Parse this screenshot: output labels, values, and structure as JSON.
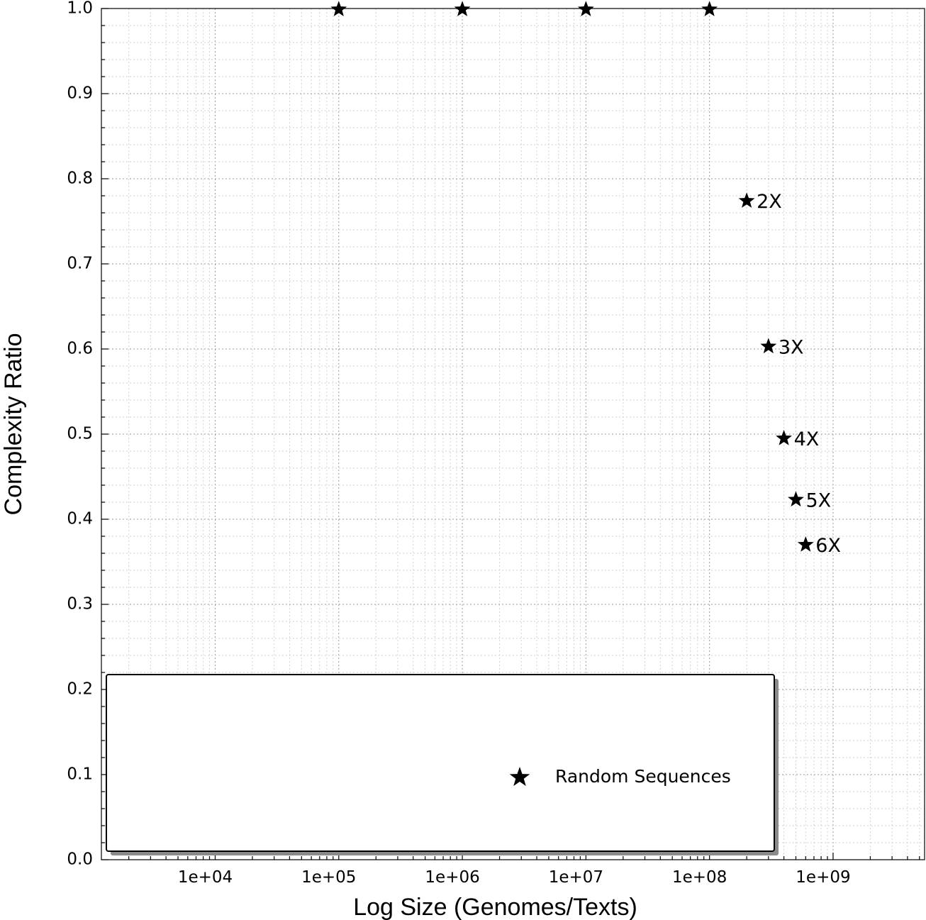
{
  "chart_data": {
    "type": "scatter",
    "xlabel": "Log Size (Genomes/Texts)",
    "ylabel": "Complexity Ratio",
    "xscale": "log",
    "xlim": [
      1200,
      5500000000
    ],
    "ylim": [
      0.0,
      1.0
    ],
    "xticks": [
      10000,
      100000,
      1000000,
      10000000,
      100000000,
      1000000000
    ],
    "xtick_labels": [
      "1e+04",
      "1e+05",
      "1e+06",
      "1e+07",
      "1e+08",
      "1e+09"
    ],
    "yticks": [
      0.0,
      0.1,
      0.2,
      0.3,
      0.4,
      0.5,
      0.6,
      0.7,
      0.8,
      0.9,
      1.0
    ],
    "ytick_labels": [
      "0.0",
      "0.1",
      "0.2",
      "0.3",
      "0.4",
      "0.5",
      "0.6",
      "0.7",
      "0.8",
      "0.9",
      "1.0"
    ],
    "grid": true,
    "legend_position": "bottom-left",
    "marker": "star",
    "series": [
      {
        "name": "Random Sequences",
        "points": [
          {
            "x": 100000,
            "y": 0.999,
            "label": ""
          },
          {
            "x": 1000000,
            "y": 0.999,
            "label": ""
          },
          {
            "x": 10000000,
            "y": 0.999,
            "label": ""
          },
          {
            "x": 100000000,
            "y": 0.999,
            "label": ""
          },
          {
            "x": 200000000,
            "y": 0.774,
            "label": "2X"
          },
          {
            "x": 300000000,
            "y": 0.603,
            "label": "3X"
          },
          {
            "x": 400000000,
            "y": 0.495,
            "label": "4X"
          },
          {
            "x": 500000000,
            "y": 0.423,
            "label": "5X"
          },
          {
            "x": 600000000,
            "y": 0.37,
            "label": "6X"
          }
        ]
      }
    ]
  }
}
